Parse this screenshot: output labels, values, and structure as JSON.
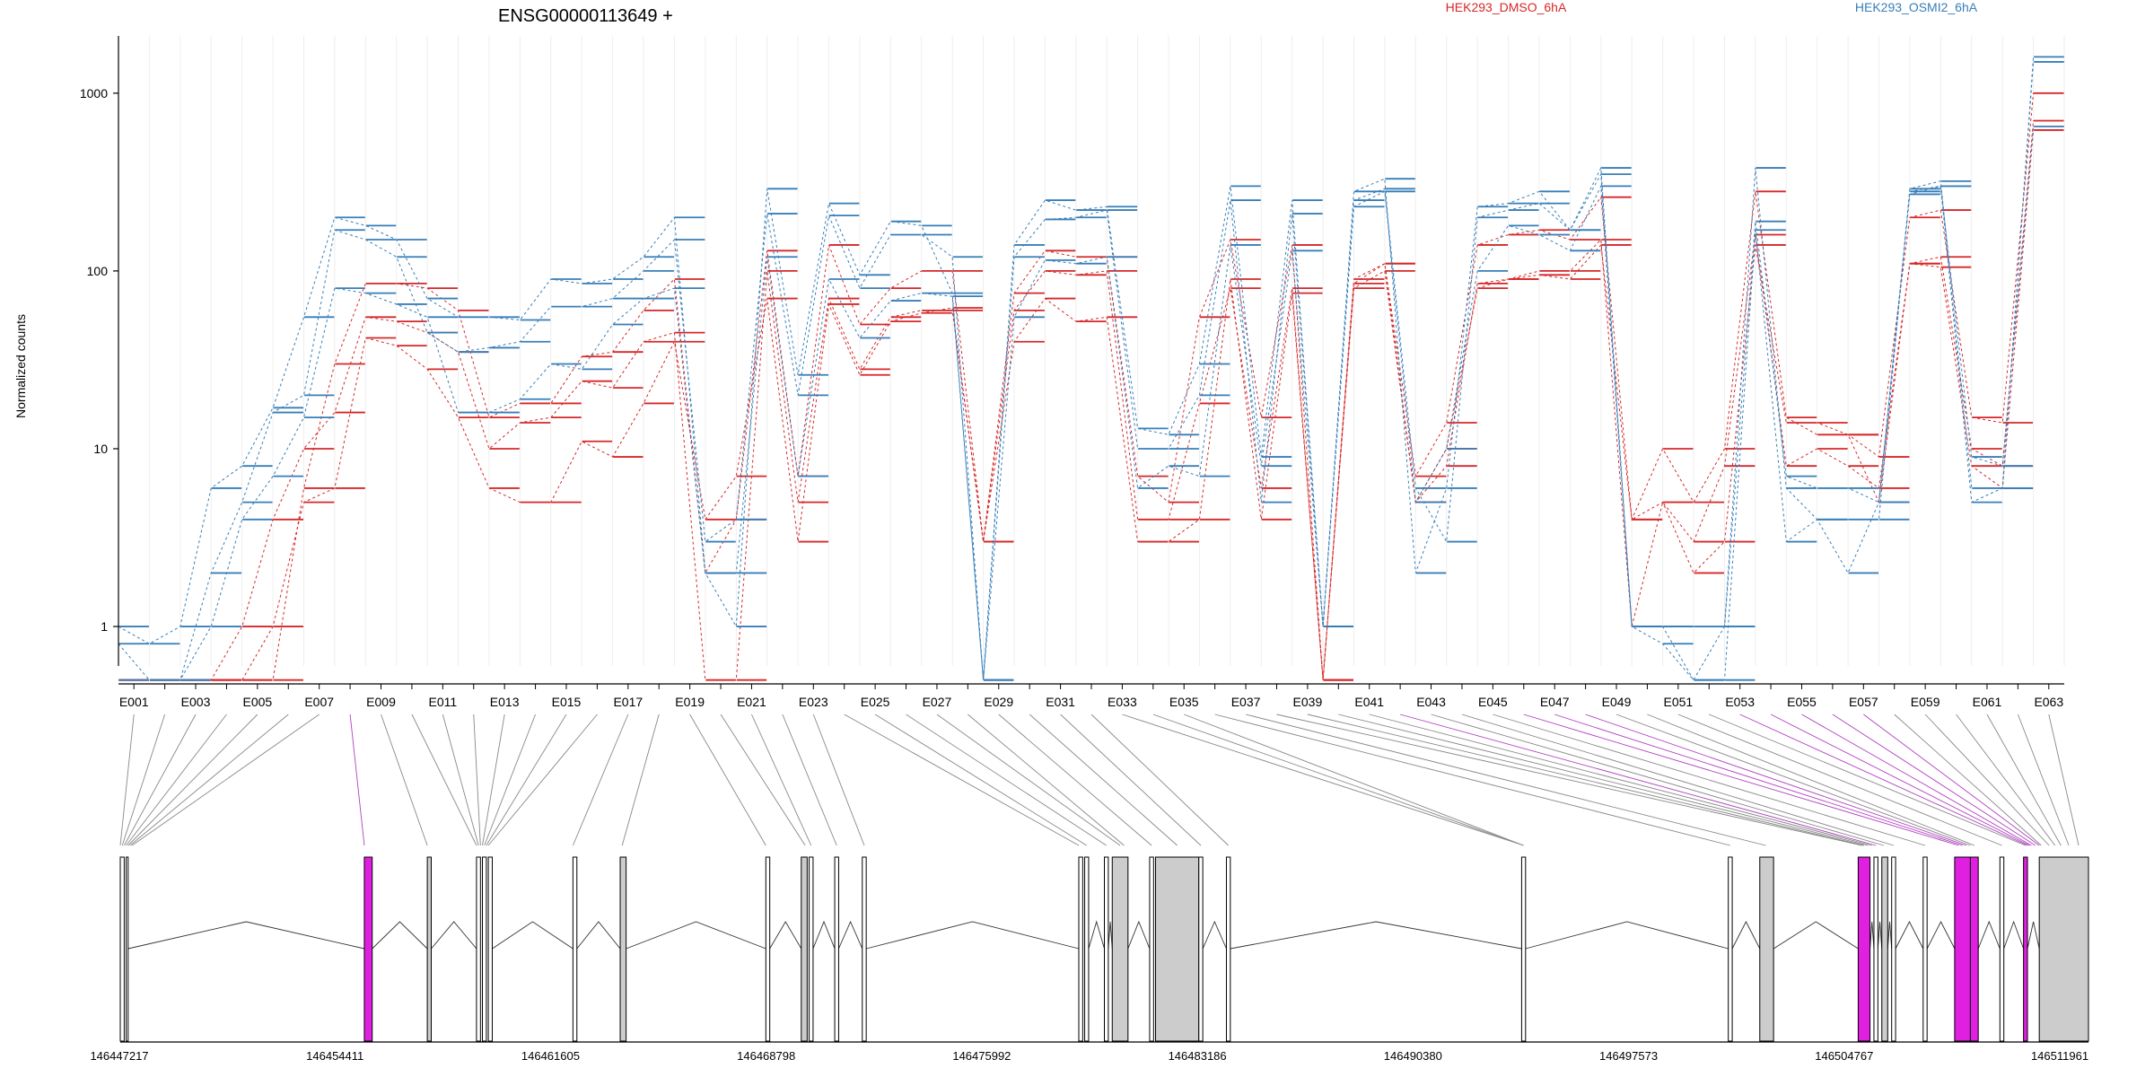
{
  "chart_data": {
    "type": "line",
    "title": "ENSG00000113649 +",
    "ylabel": "Normalized counts",
    "xlabel": "",
    "yscale": "log",
    "ylim": [
      0.6,
      2100
    ],
    "y_ticks": [
      1,
      10,
      100,
      1000
    ],
    "grid": "vertical-minor",
    "legend_placement": "top",
    "exons": [
      "E001",
      "E002",
      "E003",
      "E004",
      "E005",
      "E006",
      "E007",
      "E008",
      "E009",
      "E010",
      "E011",
      "E012",
      "E013",
      "E014",
      "E015",
      "E016",
      "E017",
      "E018",
      "E019",
      "E020",
      "E021",
      "E022",
      "E023",
      "E024",
      "E025",
      "E026",
      "E027",
      "E028",
      "E029",
      "E030",
      "E031",
      "E032",
      "E033",
      "E034",
      "E035",
      "E036",
      "E037",
      "E038",
      "E039",
      "E040",
      "E041",
      "E042",
      "E043",
      "E044",
      "E045",
      "E046",
      "E047",
      "E048",
      "E049",
      "E050",
      "E051",
      "E052",
      "E053",
      "E054",
      "E055",
      "E056",
      "E057",
      "E058",
      "E059",
      "E060",
      "E061",
      "E062",
      "E063"
    ],
    "exon_tick_labels": [
      "E001",
      "E003",
      "E005",
      "E007",
      "E009",
      "E011",
      "E013",
      "E015",
      "E017",
      "E019",
      "E021",
      "E023",
      "E025",
      "E027",
      "E029",
      "E031",
      "E033",
      "E035",
      "E037",
      "E039",
      "E041",
      "E043",
      "E045",
      "E047",
      "E049",
      "E051",
      "E053",
      "E055",
      "E057",
      "E059",
      "E061",
      "E063"
    ],
    "legend": [
      {
        "name": "HEK293_DMSO_6hA",
        "color": "#d62728"
      },
      {
        "name": "HEK293_OSMI2_6hA",
        "color": "#377eb8"
      }
    ],
    "series": [
      {
        "group": "HEK293_DMSO_6hA",
        "color": "#d62728",
        "values": [
          0.5,
          0.5,
          0.5,
          0.5,
          0.5,
          0.5,
          6,
          30,
          85,
          85,
          80,
          60,
          15,
          18,
          18,
          33,
          35,
          60,
          90,
          2,
          4,
          130,
          7,
          140,
          50,
          80,
          100,
          100,
          3,
          75,
          130,
          120,
          120,
          7,
          5,
          55,
          150,
          15,
          140,
          0.5,
          90,
          110,
          7,
          14,
          140,
          160,
          170,
          150,
          260,
          4,
          10,
          5,
          10,
          280,
          15,
          12,
          12,
          9,
          200,
          220,
          15,
          14,
          1000
        ]
      },
      {
        "group": "HEK293_DMSO_6hA",
        "color": "#d62728",
        "values": [
          0.5,
          0.5,
          0.5,
          0.5,
          1,
          4,
          10,
          16,
          55,
          52,
          45,
          35,
          10,
          14,
          15,
          24,
          22,
          40,
          45,
          0.5,
          0.5,
          100,
          5,
          70,
          28,
          55,
          60,
          60,
          3,
          60,
          100,
          95,
          100,
          4,
          4,
          18,
          80,
          6,
          80,
          0.5,
          85,
          110,
          5,
          10,
          80,
          90,
          100,
          100,
          150,
          1,
          5,
          3,
          8,
          160,
          8,
          10,
          8,
          6,
          110,
          120,
          10,
          8,
          700
        ]
      },
      {
        "group": "HEK293_DMSO_6hA",
        "color": "#d62728",
        "values": [
          0.5,
          0.5,
          0.5,
          0.5,
          0.5,
          1,
          5,
          6,
          42,
          38,
          28,
          15,
          6,
          5,
          5,
          11,
          9,
          18,
          40,
          4,
          7,
          70,
          3,
          65,
          26,
          52,
          58,
          62,
          3,
          40,
          70,
          52,
          55,
          3,
          3,
          4,
          90,
          4,
          75,
          0.5,
          80,
          100,
          5,
          8,
          85,
          90,
          95,
          90,
          140,
          4,
          5,
          2,
          3,
          140,
          14,
          14,
          12,
          5,
          110,
          105,
          8,
          6,
          620
        ]
      },
      {
        "group": "HEK293_OSMI2_6hA",
        "color": "#377eb8",
        "values": [
          1,
          0.8,
          1,
          6,
          8,
          17,
          55,
          200,
          180,
          150,
          70,
          55,
          55,
          53,
          90,
          85,
          90,
          120,
          200,
          2,
          1,
          290,
          26,
          240,
          95,
          190,
          180,
          75,
          0.5,
          140,
          250,
          220,
          230,
          13,
          12,
          30,
          300,
          9,
          250,
          1,
          280,
          330,
          2,
          6,
          230,
          240,
          280,
          170,
          380,
          1,
          1,
          1,
          1,
          380,
          6,
          4,
          4,
          4,
          290,
          320,
          6,
          6,
          1600
        ]
      },
      {
        "group": "HEK293_OSMI2_6hA",
        "color": "#377eb8",
        "values": [
          0.8,
          0.5,
          0.5,
          2,
          5,
          16,
          20,
          170,
          150,
          120,
          45,
          35,
          37,
          40,
          63,
          63,
          70,
          100,
          150,
          3,
          4,
          210,
          20,
          205,
          80,
          160,
          160,
          120,
          0.5,
          120,
          195,
          200,
          220,
          10,
          10,
          20,
          250,
          5,
          210,
          1,
          250,
          290,
          6,
          3,
          200,
          220,
          240,
          170,
          350,
          1,
          0.8,
          0.5,
          1,
          190,
          7,
          6,
          6,
          5,
          270,
          300,
          5,
          6,
          1500
        ]
      },
      {
        "group": "HEK293_OSMI2_6hA",
        "color": "#377eb8",
        "values": [
          0.5,
          0.5,
          0.5,
          1,
          4,
          7,
          15,
          80,
          75,
          65,
          55,
          16,
          16,
          19,
          30,
          28,
          50,
          70,
          80,
          2,
          2,
          120,
          7,
          90,
          42,
          68,
          75,
          72,
          0.5,
          55,
          115,
          110,
          120,
          6,
          8,
          7,
          140,
          8,
          130,
          1,
          230,
          280,
          5,
          10,
          100,
          180,
          160,
          130,
          300,
          1,
          1,
          0.5,
          0.5,
          170,
          3,
          4,
          2,
          5,
          280,
          300,
          9,
          8,
          650
        ]
      }
    ],
    "genomic_tick_labels": [
      "146447217",
      "146454411",
      "146461605",
      "146468798",
      "146475992",
      "146483186",
      "146490380",
      "146497573",
      "146504767",
      "146511961"
    ]
  }
}
